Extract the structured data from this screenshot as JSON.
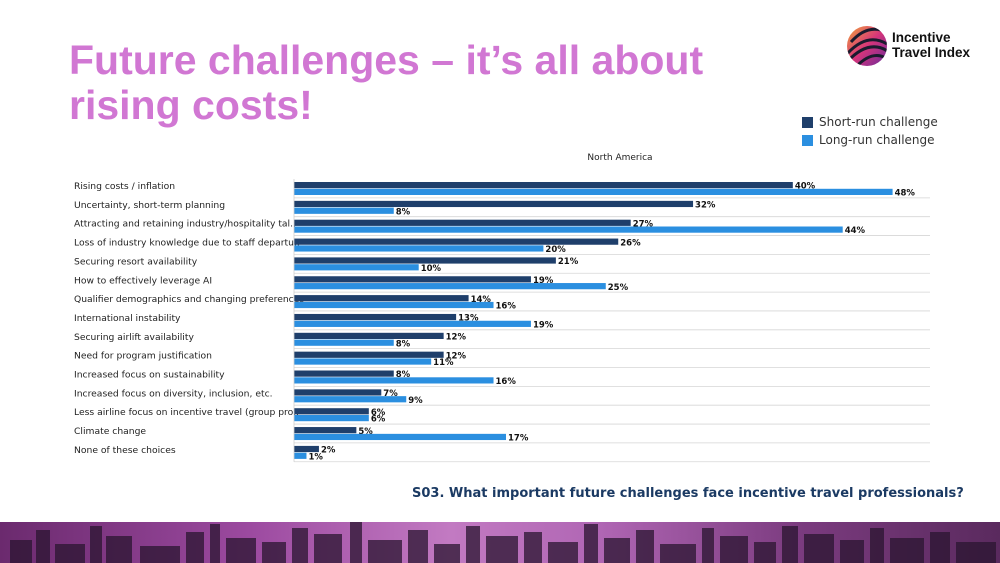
{
  "slide": {
    "title": "Future challenges – it’s all about rising costs!",
    "logo_text_line1": "Incentive",
    "logo_text_line2": "Travel Index",
    "question": "S03. What important future challenges face incentive travel professionals?"
  },
  "colors": {
    "short_run": "#1f3f6b",
    "long_run": "#2b8fe0",
    "title": "#d177d3"
  },
  "chart_data": {
    "type": "bar",
    "orientation": "horizontal",
    "title": "North America",
    "categories": [
      "Rising costs / inflation",
      "Uncertainty, short-term planning",
      "Attracting and retaining industry/hospitality tal..",
      "Loss of industry knowledge due to staff departu..",
      "Securing resort availability",
      "How to effectively leverage AI",
      "Qualifier demographics and changing preferences",
      "International instability",
      "Securing airlift availability",
      "Need for program justification",
      "Increased focus on sustainability",
      "Increased focus on diversity, inclusion, etc.",
      "Less airline focus on incentive travel (group pro..",
      "Climate change",
      "None of these choices"
    ],
    "series": [
      {
        "name": "Short-run challenge",
        "values": [
          40,
          32,
          27,
          26,
          21,
          19,
          14,
          13,
          12,
          12,
          8,
          7,
          6,
          5,
          2
        ]
      },
      {
        "name": "Long-run challenge",
        "values": [
          48,
          8,
          44,
          20,
          10,
          25,
          16,
          19,
          8,
          11,
          16,
          9,
          6,
          17,
          1
        ]
      }
    ],
    "xlim": [
      0,
      51
    ],
    "value_suffix": "%",
    "legend_position": "top-right",
    "grid": false
  }
}
